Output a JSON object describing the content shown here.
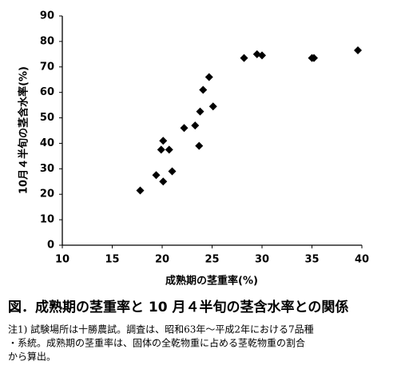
{
  "chart_data": {
    "type": "scatter",
    "x_label": "成熟期の茎重率(%)",
    "y_label": "10月４半旬の茎含水率(%)",
    "x": [
      17.8,
      19.4,
      19.9,
      20.1,
      20.1,
      20.7,
      21.0,
      22.2,
      23.3,
      23.7,
      23.8,
      24.1,
      24.7,
      25.1,
      28.2,
      29.5,
      30.0,
      35.0,
      35.2,
      39.6
    ],
    "values": [
      21.5,
      27.5,
      37.5,
      41,
      25,
      37.5,
      29,
      46,
      47,
      39,
      52.5,
      61,
      66,
      54.5,
      73.5,
      75,
      74.5,
      73.5,
      73.5,
      76.5
    ],
    "color": "#000000",
    "xlim": [
      10,
      40
    ],
    "xticks": [
      10,
      15,
      20,
      25,
      30,
      35,
      40
    ],
    "ylim": [
      0,
      90
    ],
    "yticks": [
      0,
      10,
      20,
      30,
      40,
      50,
      60,
      70,
      80,
      90
    ],
    "caption": "図．成熟期の茎重率と 10 月４半旬の茎含水率との関係",
    "notes": [
      "注1) 試験場所は十勝農試。調査は、昭和63年～平成2年における7品種",
      "・系統。成熟期の茎重率は、固体の全乾物重に占める茎乾物重の割合",
      "から算出。"
    ]
  }
}
